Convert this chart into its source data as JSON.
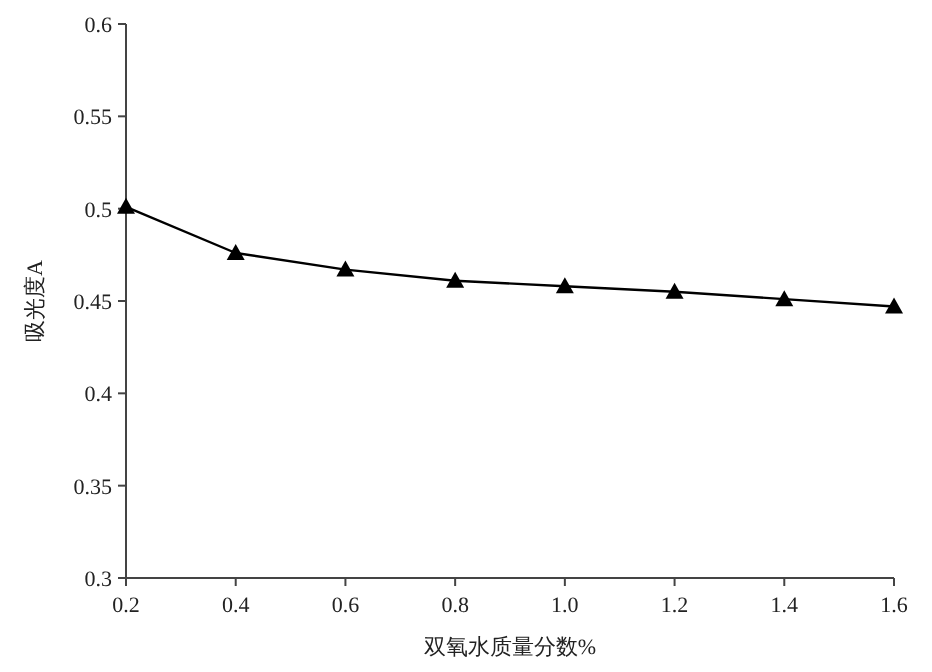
{
  "chart_data": {
    "type": "line",
    "xlabel": "双氧水质量分数%",
    "ylabel": "吸光度A",
    "x": [
      0.2,
      0.4,
      0.6,
      0.8,
      1.0,
      1.2,
      1.4,
      1.6
    ],
    "series": [
      {
        "color": "#000000",
        "values": [
          0.501,
          0.476,
          0.467,
          0.461,
          0.458,
          0.455,
          0.451,
          0.447
        ]
      }
    ],
    "xlim": [
      0.2,
      1.6
    ],
    "ylim": [
      0.3,
      0.6
    ],
    "xticks": [
      0.2,
      0.4,
      0.6,
      0.8,
      {
        "value": 1.0,
        "label": "1.0"
      },
      1.2,
      1.4,
      1.6
    ],
    "yticks": [
      0.3,
      0.35,
      0.4,
      0.45,
      0.5,
      0.55,
      0.6
    ],
    "marker": "triangle",
    "line_style": "solid"
  }
}
